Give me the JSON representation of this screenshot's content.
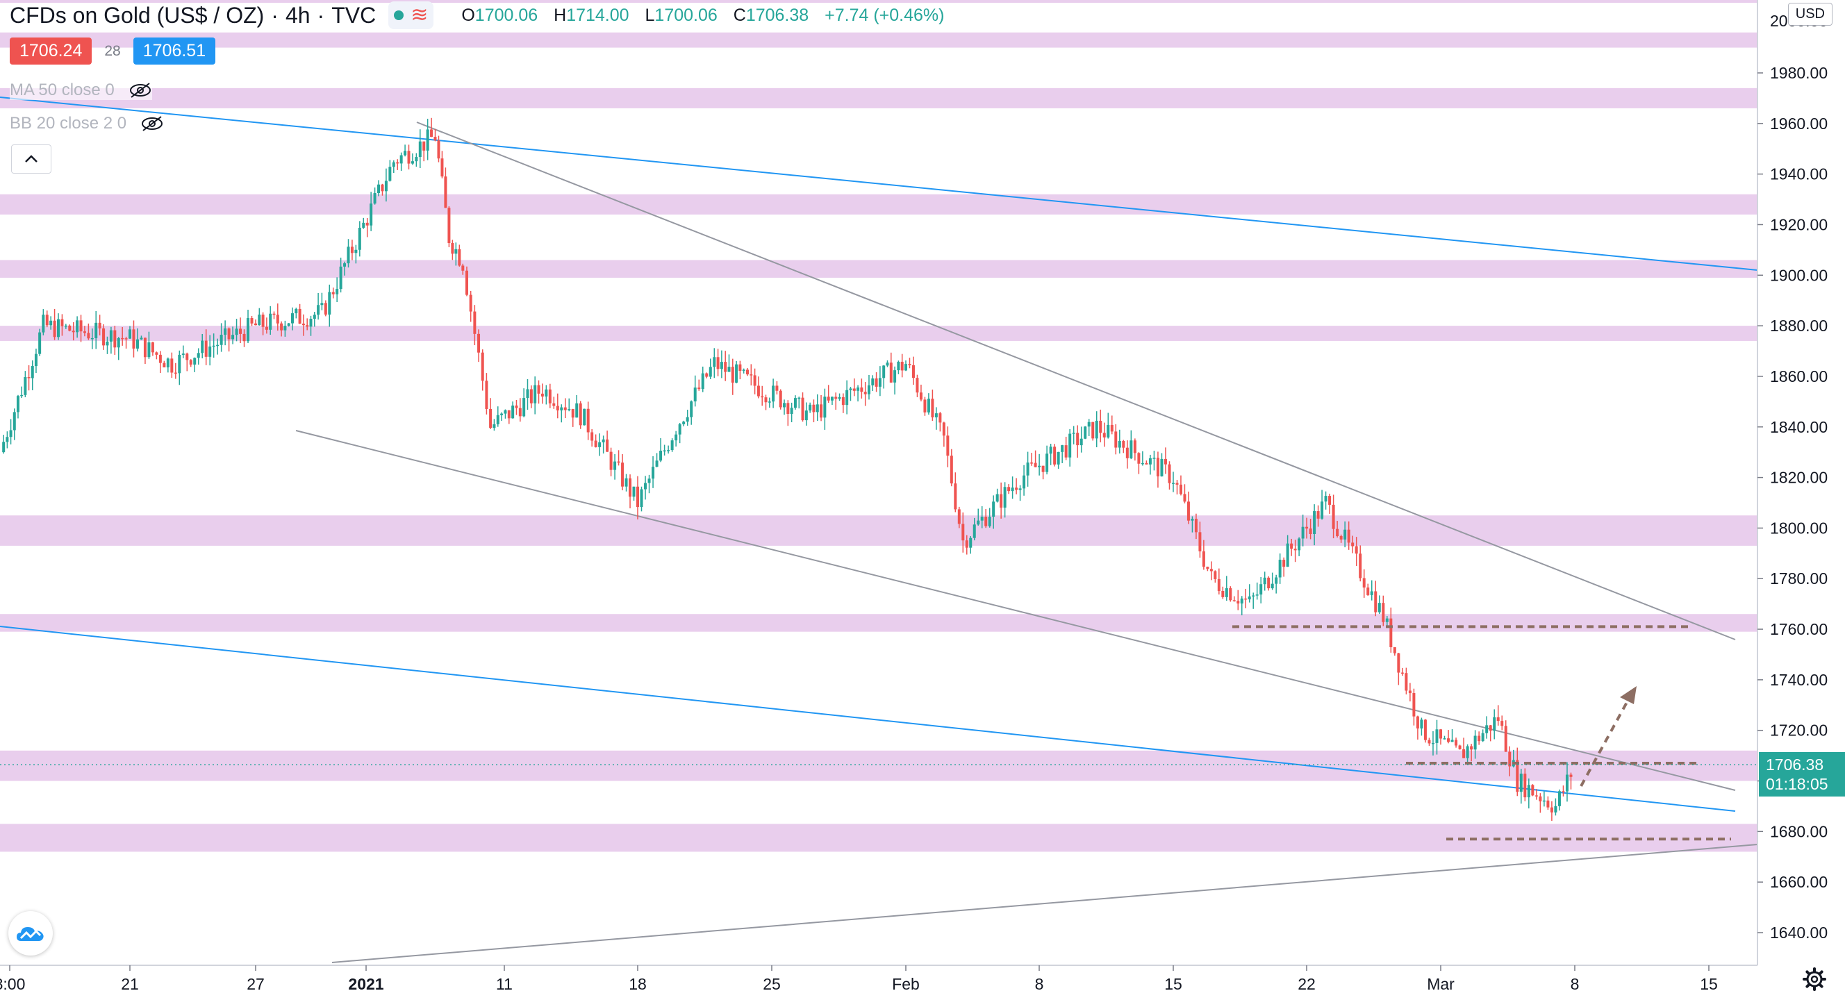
{
  "header": {
    "symbol": "CFDs on Gold (US$ / OZ)",
    "interval": "4h",
    "source": "TVC",
    "ohlc": {
      "o": "1700.06",
      "h": "1714.00",
      "l": "1700.06",
      "c": "1706.38",
      "change": "+7.74 (+0.46%)"
    }
  },
  "quote": {
    "bid": "1706.24",
    "spread": "28",
    "ask": "1706.51"
  },
  "indicators": [
    {
      "label": "MA 50 close 0"
    },
    {
      "label": "BB 20 close 2 0"
    }
  ],
  "axis": {
    "currency": "USD",
    "last_price": "1706.38",
    "countdown": "01:18:05",
    "price_ticks": [
      "1640.00",
      "1660.00",
      "1680.00",
      "1700.00",
      "1720.00",
      "1740.00",
      "1760.00",
      "1780.00",
      "1800.00",
      "1820.00",
      "1840.00",
      "1860.00",
      "1880.00",
      "1900.00",
      "1920.00",
      "1940.00",
      "1960.00",
      "1980.00"
    ],
    "time_ticks": [
      "8:00",
      "21",
      "27",
      "2021",
      "11",
      "18",
      "25",
      "Feb",
      "8",
      "15",
      "22",
      "Mar",
      "8",
      "15"
    ]
  },
  "colors": {
    "up": "#26a69a",
    "down": "#ef5350",
    "zone": "#e1bee7",
    "trend_blue": "#2196f3",
    "trend_gray": "#9598a1",
    "dashed": "#8d6e63"
  },
  "chart_data": {
    "type": "candlestick",
    "title": "CFDs on Gold (US$ / OZ)",
    "ylim": [
      1628,
      2006
    ],
    "price_zones": [
      [
        1990,
        1996
      ],
      [
        1966,
        1974
      ],
      [
        1924,
        1932
      ],
      [
        1899,
        1906
      ],
      [
        1874,
        1880
      ],
      [
        1793,
        1805
      ],
      [
        1759,
        1766
      ],
      [
        1700,
        1712
      ],
      [
        1672,
        1683
      ]
    ],
    "support_resistance_levels": [
      1761,
      1707,
      1677
    ],
    "close_path": [
      {
        "x": "Dec 15",
        "y": 1830
      },
      {
        "x": "Dec 17",
        "y": 1880
      },
      {
        "x": "Dec 21",
        "y": 1875
      },
      {
        "x": "Dec 23",
        "y": 1865
      },
      {
        "x": "Dec 27",
        "y": 1880
      },
      {
        "x": "Dec 30",
        "y": 1885
      },
      {
        "x": "Jan 3",
        "y": 1945
      },
      {
        "x": "Jan 6",
        "y": 1955
      },
      {
        "x": "Jan 7",
        "y": 1915
      },
      {
        "x": "Jan 8",
        "y": 1905
      },
      {
        "x": "Jan 10",
        "y": 1840
      },
      {
        "x": "Jan 13",
        "y": 1855
      },
      {
        "x": "Jan 15",
        "y": 1845
      },
      {
        "x": "Jan 18",
        "y": 1810
      },
      {
        "x": "Jan 20",
        "y": 1840
      },
      {
        "x": "Jan 22",
        "y": 1865
      },
      {
        "x": "Jan 27",
        "y": 1845
      },
      {
        "x": "Feb 1",
        "y": 1865
      },
      {
        "x": "Feb 3",
        "y": 1835
      },
      {
        "x": "Feb 4",
        "y": 1795
      },
      {
        "x": "Feb 7",
        "y": 1820
      },
      {
        "x": "Feb 11",
        "y": 1840
      },
      {
        "x": "Feb 15",
        "y": 1820
      },
      {
        "x": "Feb 17",
        "y": 1780
      },
      {
        "x": "Feb 19",
        "y": 1770
      },
      {
        "x": "Feb 23",
        "y": 1810
      },
      {
        "x": "Feb 26",
        "y": 1765
      },
      {
        "x": "Feb 28",
        "y": 1720
      },
      {
        "x": "Mar 2",
        "y": 1710
      },
      {
        "x": "Mar 4",
        "y": 1725
      },
      {
        "x": "Mar 5",
        "y": 1700
      },
      {
        "x": "Mar 7",
        "y": 1690
      },
      {
        "x": "Mar 8",
        "y": 1706
      }
    ]
  }
}
